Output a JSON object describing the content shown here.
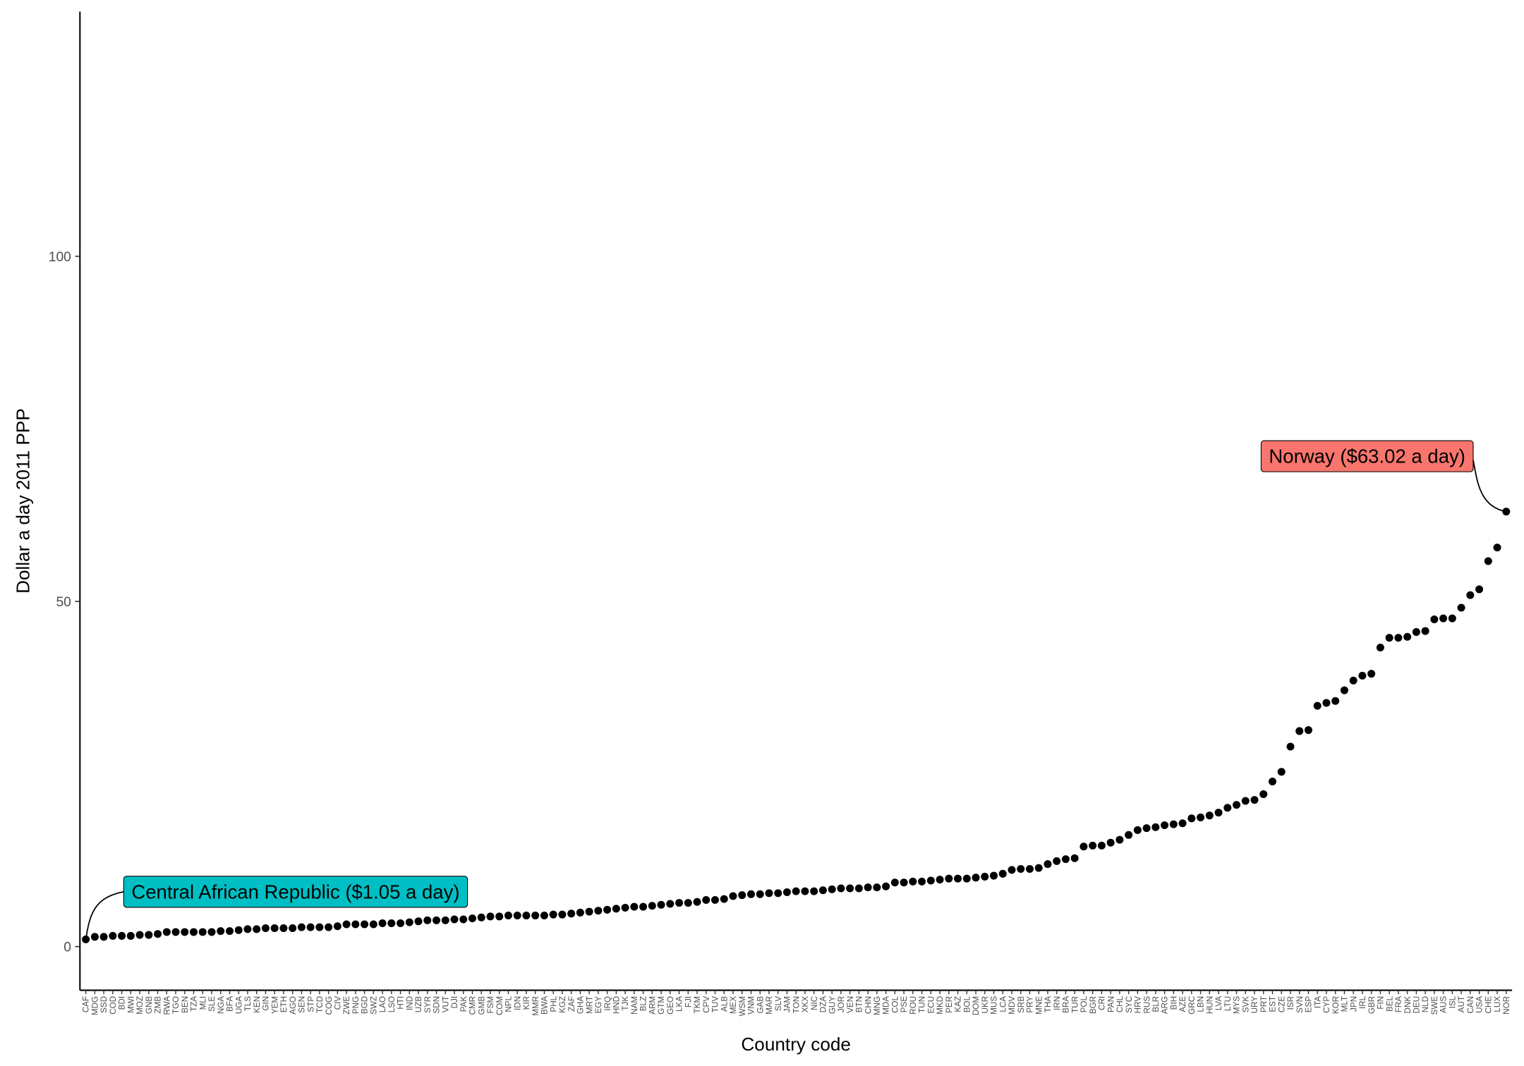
{
  "chart_data": {
    "type": "scatter",
    "x_label": "Country code",
    "y_label": "Dollar a day 2011 PPP",
    "categories": [
      "CAF",
      "MDG",
      "SSD",
      "COD",
      "BDI",
      "MWI",
      "MOZ",
      "GNB",
      "ZMB",
      "RWA",
      "TGO",
      "BEN",
      "TZA",
      "MLI",
      "SLE",
      "NGA",
      "BFA",
      "UGA",
      "TLS",
      "KEN",
      "GIN",
      "YEM",
      "ETH",
      "AGO",
      "SEN",
      "STP",
      "TCD",
      "COG",
      "CIV",
      "ZWE",
      "PNG",
      "BGD",
      "SWZ",
      "LAO",
      "LSO",
      "HTI",
      "IND",
      "UZB",
      "SYR",
      "SDN",
      "VUT",
      "DJI",
      "PAK",
      "CMR",
      "GMB",
      "FSM",
      "COM",
      "NPL",
      "IDN",
      "KIR",
      "MMR",
      "BWA",
      "PHL",
      "KGZ",
      "ZAF",
      "GHA",
      "MRT",
      "EGY",
      "IRQ",
      "HND",
      "TJK",
      "NAM",
      "BLZ",
      "ARM",
      "GTM",
      "GEO",
      "LKA",
      "FJI",
      "TKM",
      "CPV",
      "TUV",
      "ALB",
      "MEX",
      "WSM",
      "VNM",
      "GAB",
      "MAR",
      "SLV",
      "JAM",
      "TON",
      "XKX",
      "NIC",
      "DZA",
      "GUY",
      "JOR",
      "VEN",
      "BTN",
      "CHN",
      "MNG",
      "MDA",
      "COL",
      "PSE",
      "ROU",
      "TUN",
      "ECU",
      "MKD",
      "PER",
      "KAZ",
      "BOL",
      "DOM",
      "UKR",
      "MUS",
      "LCA",
      "MDV",
      "SRB",
      "PRY",
      "MNE",
      "THA",
      "IRN",
      "BRA",
      "TUR",
      "POL",
      "BGR",
      "CRI",
      "PAN",
      "CHL",
      "SYC",
      "HRV",
      "RUS",
      "BLR",
      "ARG",
      "BIH",
      "AZE",
      "GRC",
      "LBN",
      "HUN",
      "LVA",
      "LTU",
      "MYS",
      "SVK",
      "URY",
      "PRT",
      "EST",
      "CZE",
      "ISR",
      "SVN",
      "ESP",
      "ITA",
      "CYP",
      "KOR",
      "MLT",
      "JPN",
      "IRL",
      "GBR",
      "FIN",
      "BEL",
      "FRA",
      "DNK",
      "DEU",
      "NLD",
      "SWE",
      "AUS",
      "ISL",
      "AUT",
      "CAN",
      "USA",
      "CHE",
      "LUX",
      "NOR"
    ],
    "values": [
      1.05,
      1.41,
      1.41,
      1.55,
      1.55,
      1.55,
      1.69,
      1.69,
      1.83,
      2.11,
      2.11,
      2.11,
      2.11,
      2.11,
      2.11,
      2.25,
      2.25,
      2.39,
      2.53,
      2.53,
      2.67,
      2.67,
      2.67,
      2.67,
      2.81,
      2.81,
      2.81,
      2.81,
      2.95,
      3.23,
      3.23,
      3.23,
      3.23,
      3.38,
      3.38,
      3.38,
      3.52,
      3.66,
      3.8,
      3.8,
      3.8,
      3.94,
      3.94,
      4.08,
      4.22,
      4.36,
      4.36,
      4.5,
      4.5,
      4.5,
      4.5,
      4.5,
      4.64,
      4.64,
      4.78,
      4.92,
      5.06,
      5.2,
      5.34,
      5.49,
      5.63,
      5.77,
      5.77,
      5.91,
      6.05,
      6.19,
      6.33,
      6.33,
      6.47,
      6.75,
      6.75,
      6.89,
      7.31,
      7.45,
      7.59,
      7.59,
      7.74,
      7.74,
      7.88,
      8.02,
      8.02,
      8.02,
      8.16,
      8.3,
      8.44,
      8.44,
      8.44,
      8.58,
      8.58,
      8.72,
      9.28,
      9.28,
      9.42,
      9.42,
      9.56,
      9.7,
      9.85,
      9.85,
      9.85,
      9.99,
      10.13,
      10.27,
      10.55,
      11.11,
      11.25,
      11.25,
      11.39,
      11.95,
      12.38,
      12.66,
      12.8,
      14.49,
      14.63,
      14.63,
      15.05,
      15.47,
      16.17,
      16.88,
      17.16,
      17.3,
      17.58,
      17.72,
      17.86,
      18.57,
      18.71,
      18.99,
      19.41,
      20.11,
      20.53,
      21.1,
      21.24,
      22.08,
      23.91,
      25.32,
      28.97,
      31.22,
      31.36,
      34.88,
      35.3,
      35.58,
      37.13,
      38.54,
      39.24,
      39.52,
      43.32,
      44.73,
      44.73,
      44.87,
      45.57,
      45.71,
      47.4,
      47.54,
      47.54,
      49.09,
      50.91,
      51.76,
      55.84,
      57.81,
      63.02
    ],
    "color": "#000000",
    "ylim": [
      -6.33,
      135.44
    ],
    "yticks": [
      0,
      50,
      100
    ],
    "grid": false,
    "annotations": [
      {
        "index": 0,
        "text": "Central African Republic ($1.05 a day)",
        "color": "#00BFC4"
      },
      {
        "index": 158,
        "text": "Norway ($63.02 a day)",
        "color": "#F8766D"
      }
    ]
  }
}
